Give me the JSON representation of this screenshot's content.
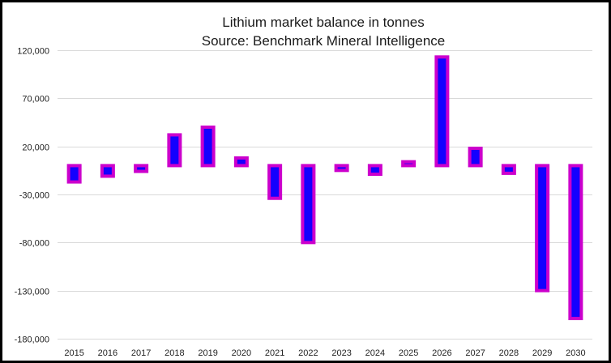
{
  "chart_data": {
    "type": "bar",
    "title": "Lithium market balance in tonnes",
    "subtitle": "Source: Benchmark Mineral Intelligence",
    "xlabel": "",
    "ylabel": "",
    "ylim": [
      -180000,
      120000
    ],
    "yticks": [
      120000,
      70000,
      20000,
      -30000,
      -80000,
      -130000,
      -180000
    ],
    "ytick_labels": [
      "120,000",
      "70,000",
      "20,000",
      "-30,000",
      "-80,000",
      "-130,000",
      "-180,000"
    ],
    "grid": true,
    "legend": "none",
    "categories": [
      "2015",
      "2016",
      "2017",
      "2018",
      "2019",
      "2020",
      "2021",
      "2022",
      "2023",
      "2024",
      "2025",
      "2026",
      "2027",
      "2028",
      "2029",
      "2030"
    ],
    "series": [
      {
        "name": "Market balance",
        "values": [
          -17000,
          -11000,
          -6000,
          32000,
          40000,
          8000,
          -34000,
          -80000,
          -5000,
          -9000,
          4000,
          113000,
          18000,
          -8000,
          -130000,
          -159000
        ]
      }
    ],
    "colors": {
      "bar_fill": "#1400ff",
      "bar_outline": "#cc00cc",
      "grid": "#d9d9d9",
      "frame": "#000000"
    }
  }
}
